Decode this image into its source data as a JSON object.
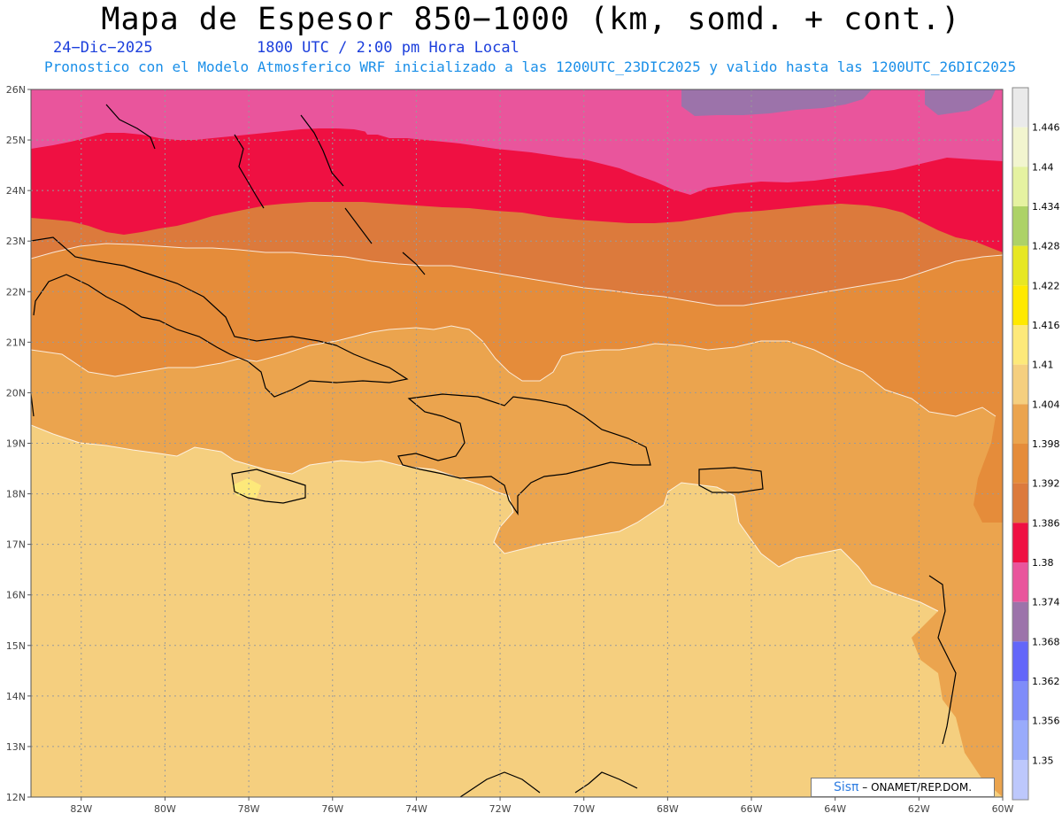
{
  "header": {
    "title": "Mapa de Espesor 850−1000 (km, somd. + cont.)",
    "date": "24−Dic−2025",
    "time": "1800 UTC / 2:00 pm Hora Local",
    "model_info": "Pronostico con el Modelo Atmosferico WRF inicializado a las 1200UTC_23DIC2025 y valido hasta las  1200UTC_26DIC2025"
  },
  "map": {
    "lat_labels": [
      "26N",
      "25N",
      "24N",
      "23N",
      "22N",
      "21N",
      "20N",
      "19N",
      "18N",
      "17N",
      "16N",
      "15N",
      "14N",
      "13N",
      "12N"
    ],
    "lon_labels": [
      "82W",
      "80W",
      "78W",
      "76W",
      "74W",
      "72W",
      "70W",
      "68W",
      "66W",
      "64W",
      "62W",
      "60W"
    ],
    "lat_range": [
      12,
      26
    ],
    "lon_range": [
      -83.2,
      -60
    ],
    "grid": true
  },
  "legend": {
    "levels": [
      "1.446",
      "1.44",
      "1.434",
      "1.428",
      "1.422",
      "1.416",
      "1.41",
      "1.404",
      "1.398",
      "1.392",
      "1.386",
      "1.38",
      "1.374",
      "1.368",
      "1.362",
      "1.356",
      "1.35"
    ],
    "colors": [
      "#eaeaea",
      "#f2f5cf",
      "#e5f2a1",
      "#add267",
      "#e7e723",
      "#ffe900",
      "#fde97a",
      "#f5cf7f",
      "#eba44e",
      "#e58c3a",
      "#dc7a3c",
      "#ef1042",
      "#e9559c",
      "#9c73aa",
      "#6366f9",
      "#7f8cf9",
      "#99abfb",
      "#bdc8fc"
    ]
  },
  "credit": {
    "brand": "Sisπ",
    "text": "– ONAMET/REP.DOM."
  }
}
